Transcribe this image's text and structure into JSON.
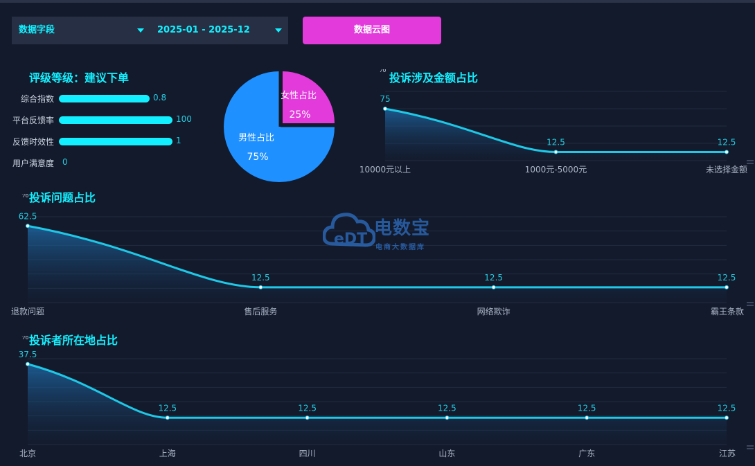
{
  "filters": {
    "field_label": "数据字段",
    "date_range": "2025-01 - 2025-12",
    "cloud_button": "数据云图"
  },
  "rating": {
    "title": "评级等级：建议下单",
    "items": [
      {
        "label": "综合指数",
        "value": "0.8",
        "fill": 0.8
      },
      {
        "label": "平台反馈率",
        "value": "100",
        "fill": 1.0
      },
      {
        "label": "反馈时效性",
        "value": "1",
        "fill": 1.0
      },
      {
        "label": "用户满意度",
        "value": "0",
        "fill": 0.0
      }
    ]
  },
  "gender": {
    "female_label": "女性占比",
    "female_value": "25%",
    "male_label": "男性占比",
    "male_value": "75%"
  },
  "watermark": {
    "brand": "电数宝",
    "sub": "电商大数据库",
    "logo": "eDT"
  },
  "colors": {
    "accent": "#12f0ff",
    "line": "#1ec8e6",
    "female": "#e23adb",
    "male": "#1e90ff",
    "bg": "#131a2b",
    "label": "#aab6c8"
  },
  "chart_data": [
    {
      "type": "area",
      "title": "投诉涉及金额占比",
      "ylabel": "%",
      "categories": [
        "10000元以上",
        "1000元-5000元",
        "未选择金额"
      ],
      "values": [
        75,
        12.5,
        12.5
      ],
      "value_labels": [
        "75",
        "12.5",
        "12.5"
      ],
      "ylim": [
        0,
        100
      ],
      "grid": true
    },
    {
      "type": "area",
      "title": "投诉问题占比",
      "ylabel": "%",
      "categories": [
        "退款问题",
        "售后服务",
        "网络欺诈",
        "霸王条款"
      ],
      "values": [
        62.5,
        12.5,
        12.5,
        12.5
      ],
      "value_labels": [
        "62.5",
        "12.5",
        "12.5",
        "12.5"
      ],
      "ylim": [
        0,
        70
      ],
      "grid": true
    },
    {
      "type": "area",
      "title": "投诉者所在地占比",
      "ylabel": "%",
      "categories": [
        "北京",
        "上海",
        "四川",
        "山东",
        "广东",
        "江苏"
      ],
      "values": [
        37.5,
        12.5,
        12.5,
        12.5,
        12.5,
        12.5
      ],
      "value_labels": [
        "37.5",
        "12.5",
        "12.5",
        "12.5",
        "12.5",
        "12.5"
      ],
      "ylim": [
        0,
        40
      ],
      "grid": true
    }
  ]
}
